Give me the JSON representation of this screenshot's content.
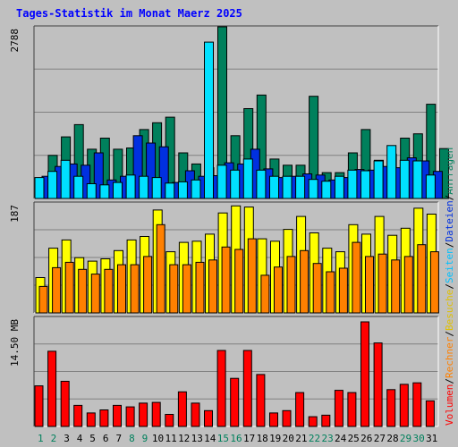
{
  "title": "Tages-Statistik im Monat Maerz 2025",
  "colors": {
    "title": "#0000ff",
    "background": "#c0c0c0",
    "anfragen": "#00805c",
    "dateien": "#0030e0",
    "seiten": "#00e0ff",
    "besuche": "#ffff00",
    "rechner": "#ff8000",
    "volumen": "#ff0000",
    "weekday_label": "#000000",
    "weekend_label": "#00805c"
  },
  "right_legend": [
    {
      "text": "Volumen",
      "color": "#ff0000"
    },
    {
      "text": "Rechner",
      "color": "#ff8000"
    },
    {
      "text": "Besuche",
      "color": "#e0c000"
    },
    {
      "text": "Seiten",
      "color": "#00c0ff"
    },
    {
      "text": "Dateien",
      "color": "#0030e0"
    },
    {
      "text": "Anfragen",
      "color": "#00805c"
    }
  ],
  "right_legend_separator": "/",
  "chart_data": [
    {
      "type": "bar",
      "panel": "top",
      "ymax_label": "2788",
      "ylim": [
        0,
        2788
      ],
      "categories": [
        "1",
        "2",
        "3",
        "4",
        "5",
        "6",
        "7",
        "8",
        "9",
        "10",
        "11",
        "12",
        "13",
        "14",
        "15",
        "16",
        "17",
        "18",
        "19",
        "20",
        "21",
        "22",
        "23",
        "24",
        "25",
        "26",
        "27",
        "28",
        "29",
        "30",
        "31"
      ],
      "series": [
        {
          "name": "Anfragen",
          "values": [
            700,
            1000,
            1200,
            800,
            980,
            800,
            820,
            1120,
            1230,
            1320,
            740,
            560,
            500,
            2788,
            1020,
            1460,
            1680,
            640,
            540,
            540,
            1660,
            420,
            420,
            740,
            1120,
            620,
            720,
            980,
            1050,
            1530,
            810
          ]
        },
        {
          "name": "Dateien",
          "values": [
            360,
            520,
            560,
            540,
            740,
            300,
            360,
            1020,
            900,
            840,
            260,
            450,
            360,
            370,
            580,
            560,
            800,
            480,
            340,
            360,
            400,
            380,
            300,
            340,
            470,
            460,
            520,
            500,
            660,
            610,
            440
          ]
        },
        {
          "name": "Seiten",
          "values": [
            340,
            440,
            620,
            360,
            240,
            220,
            260,
            380,
            360,
            340,
            250,
            270,
            300,
            2540,
            540,
            460,
            640,
            460,
            360,
            360,
            360,
            310,
            280,
            360,
            460,
            450,
            610,
            860,
            620,
            610,
            380
          ]
        }
      ]
    },
    {
      "type": "bar",
      "panel": "middle",
      "ymax_label": "187",
      "ylim": [
        0,
        187
      ],
      "categories": [
        "1",
        "2",
        "3",
        "4",
        "5",
        "6",
        "7",
        "8",
        "9",
        "10",
        "11",
        "12",
        "13",
        "14",
        "15",
        "16",
        "17",
        "18",
        "19",
        "20",
        "21",
        "22",
        "23",
        "24",
        "25",
        "26",
        "27",
        "28",
        "29",
        "30",
        "31"
      ],
      "series": [
        {
          "name": "Besuche",
          "values": [
            60,
            110,
            124,
            94,
            88,
            92,
            106,
            124,
            130,
            175,
            104,
            120,
            122,
            134,
            170,
            182,
            180,
            126,
            122,
            142,
            164,
            136,
            110,
            104,
            150,
            134,
            164,
            132,
            144,
            178,
            168
          ]
        },
        {
          "name": "Rechner",
          "values": [
            45,
            77,
            86,
            74,
            66,
            74,
            82,
            82,
            96,
            150,
            82,
            82,
            86,
            90,
            112,
            108,
            126,
            64,
            78,
            96,
            106,
            84,
            70,
            76,
            120,
            96,
            100,
            90,
            96,
            116,
            104
          ]
        }
      ]
    },
    {
      "type": "bar",
      "panel": "bottom",
      "ymax_label": "14.50 MB",
      "ylim": [
        0,
        14.5
      ],
      "categories": [
        "1",
        "2",
        "3",
        "4",
        "5",
        "6",
        "7",
        "8",
        "9",
        "10",
        "11",
        "12",
        "13",
        "14",
        "15",
        "16",
        "17",
        "18",
        "19",
        "20",
        "21",
        "22",
        "23",
        "24",
        "25",
        "26",
        "27",
        "28",
        "29",
        "30",
        "31"
      ],
      "series": [
        {
          "name": "Volumen",
          "values": [
            5.4,
            10.0,
            6.0,
            2.8,
            1.8,
            2.2,
            2.8,
            2.6,
            3.1,
            3.2,
            1.6,
            4.6,
            3.1,
            2.1,
            10.1,
            6.4,
            10.1,
            6.9,
            1.8,
            2.1,
            4.5,
            1.3,
            1.5,
            4.8,
            4.5,
            13.9,
            11.1,
            4.9,
            5.6,
            5.8,
            3.4
          ]
        }
      ]
    }
  ],
  "weekend_days": [
    "1",
    "2",
    "8",
    "9",
    "15",
    "16",
    "22",
    "23",
    "29",
    "30"
  ]
}
